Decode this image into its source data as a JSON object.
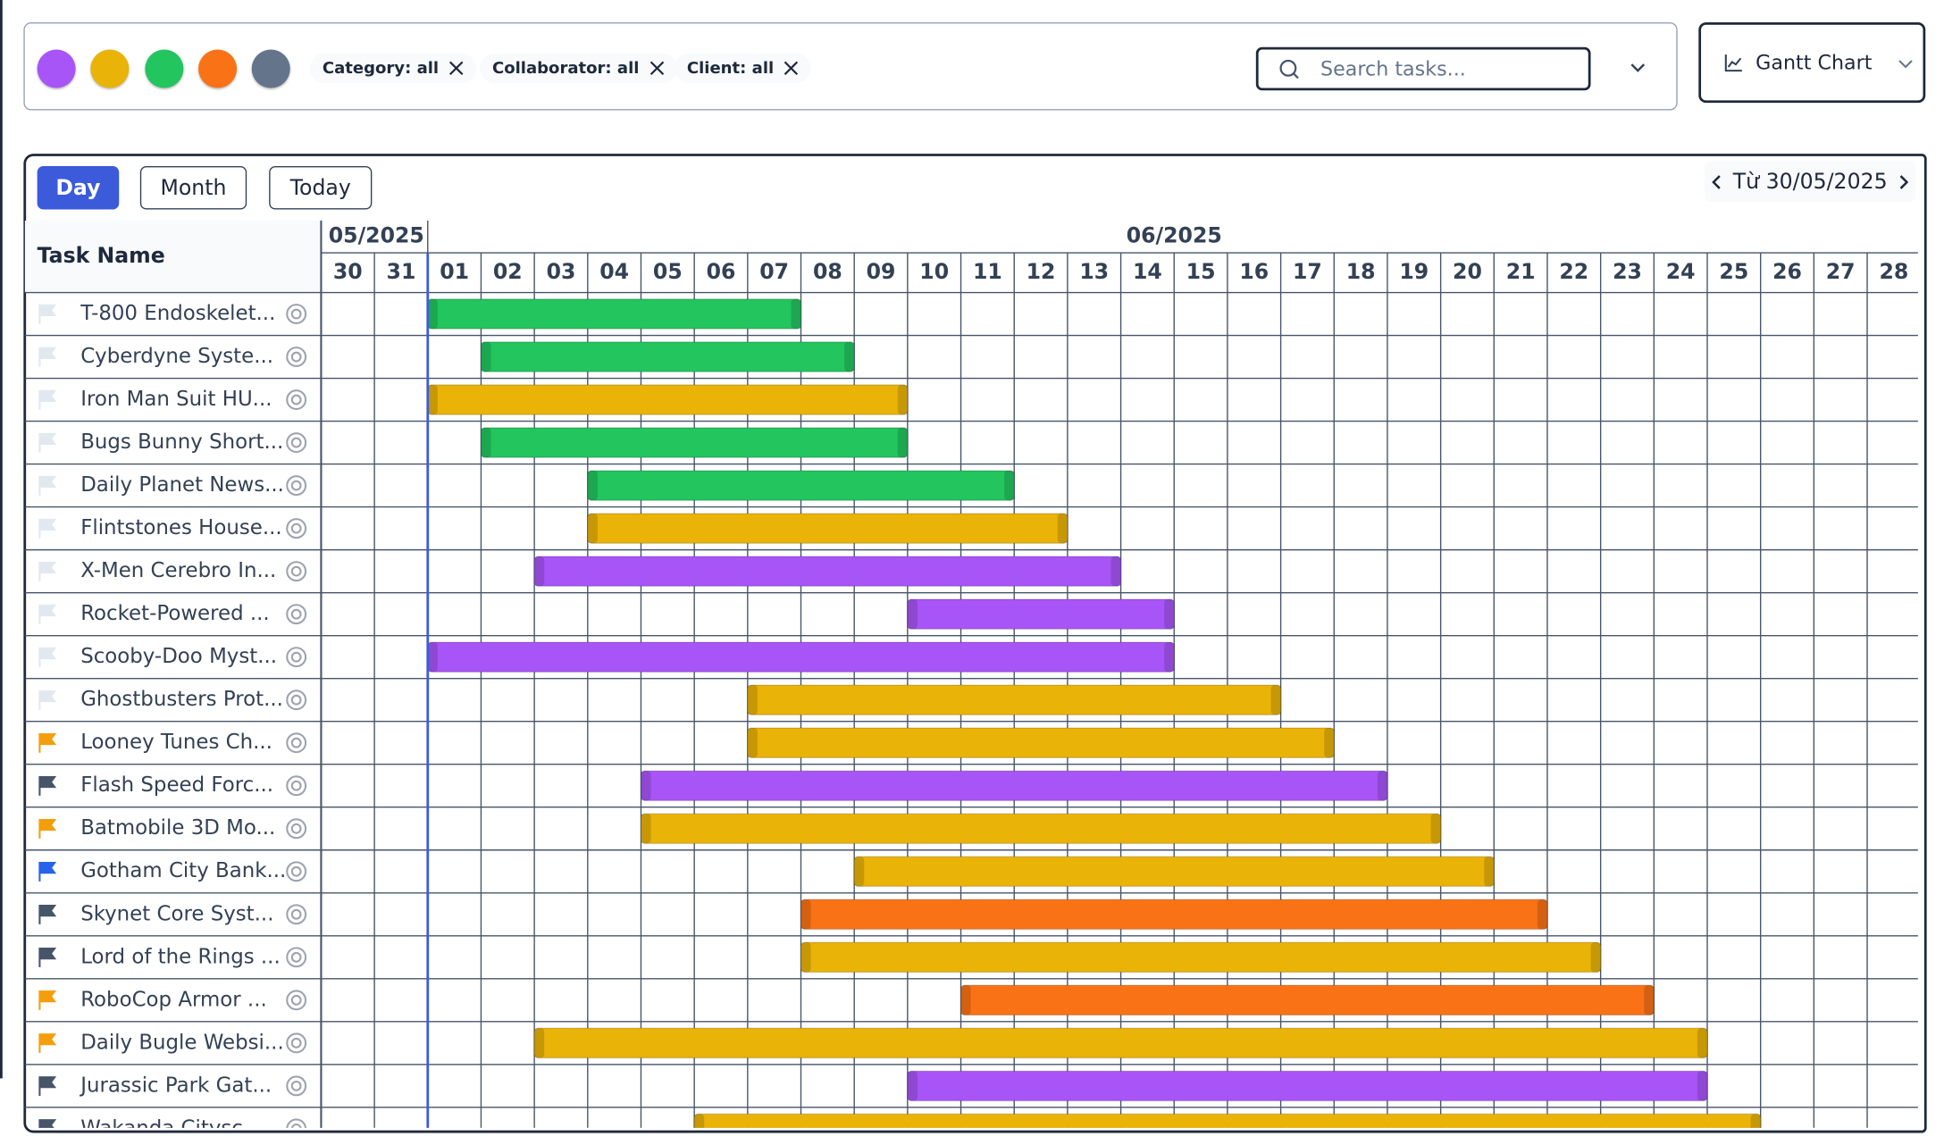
{
  "filters": {
    "colors": [
      "#a855f7",
      "#eab308",
      "#22c55e",
      "#f97316",
      "#64748b"
    ],
    "chips": [
      "Category: all",
      "Collaborator: all",
      "Client: all"
    ],
    "search_placeholder": "Search tasks...",
    "view": "Gantt Chart"
  },
  "toolbar": {
    "buttons": [
      "Day",
      "Month",
      "Today"
    ],
    "active": "Day",
    "range_label": "Từ 30/05/2025"
  },
  "gantt": {
    "column_title": "Task Name",
    "today": "01/06/2025",
    "months": [
      {
        "label": "05/2025",
        "days": [
          "30",
          "31"
        ]
      },
      {
        "label": "06/2025",
        "days": [
          "01",
          "02",
          "03",
          "04",
          "05",
          "06",
          "07",
          "08",
          "09",
          "10",
          "11",
          "12",
          "13",
          "14",
          "15",
          "16",
          "17",
          "18",
          "19",
          "20",
          "21",
          "22",
          "23",
          "24",
          "25",
          "26",
          "27",
          "28"
        ]
      }
    ],
    "tasks": [
      {
        "name": "T-800 Endoskelet...",
        "flag": "#e2e8f0",
        "color": "#22c55e",
        "start": "01/06/2025",
        "end": "07/06/2025"
      },
      {
        "name": "Cyberdyne Syste...",
        "flag": "#e2e8f0",
        "color": "#22c55e",
        "start": "02/06/2025",
        "end": "08/06/2025"
      },
      {
        "name": "Iron Man Suit HU...",
        "flag": "#e2e8f0",
        "color": "#eab308",
        "start": "01/06/2025",
        "end": "09/06/2025"
      },
      {
        "name": "Bugs Bunny Short...",
        "flag": "#e2e8f0",
        "color": "#22c55e",
        "start": "02/06/2025",
        "end": "09/06/2025"
      },
      {
        "name": "Daily Planet News...",
        "flag": "#e2e8f0",
        "color": "#22c55e",
        "start": "04/06/2025",
        "end": "11/06/2025"
      },
      {
        "name": "Flintstones House...",
        "flag": "#e2e8f0",
        "color": "#eab308",
        "start": "04/06/2025",
        "end": "12/06/2025"
      },
      {
        "name": "X-Men Cerebro In...",
        "flag": "#e2e8f0",
        "color": "#a855f7",
        "start": "03/06/2025",
        "end": "13/06/2025"
      },
      {
        "name": "Rocket-Powered ...",
        "flag": "#e2e8f0",
        "color": "#a855f7",
        "start": "10/06/2025",
        "end": "14/06/2025"
      },
      {
        "name": "Scooby-Doo Myst...",
        "flag": "#e2e8f0",
        "color": "#a855f7",
        "start": "01/06/2025",
        "end": "14/06/2025"
      },
      {
        "name": "Ghostbusters Prot...",
        "flag": "#e2e8f0",
        "color": "#eab308",
        "start": "07/06/2025",
        "end": "16/06/2025"
      },
      {
        "name": "Looney Tunes Ch...",
        "flag": "#f59e0b",
        "color": "#eab308",
        "start": "07/06/2025",
        "end": "17/06/2025"
      },
      {
        "name": "Flash Speed Forc...",
        "flag": "#475569",
        "color": "#a855f7",
        "start": "05/06/2025",
        "end": "18/06/2025"
      },
      {
        "name": "Batmobile 3D Mo...",
        "flag": "#f59e0b",
        "color": "#eab308",
        "start": "05/06/2025",
        "end": "19/06/2025"
      },
      {
        "name": "Gotham City Bank...",
        "flag": "#2563eb",
        "color": "#eab308",
        "start": "09/06/2025",
        "end": "20/06/2025"
      },
      {
        "name": "Skynet Core Syst...",
        "flag": "#475569",
        "color": "#f97316",
        "start": "08/06/2025",
        "end": "21/06/2025"
      },
      {
        "name": "Lord of the Rings ...",
        "flag": "#475569",
        "color": "#eab308",
        "start": "08/06/2025",
        "end": "22/06/2025"
      },
      {
        "name": "RoboCop Armor ...",
        "flag": "#f59e0b",
        "color": "#f97316",
        "start": "11/06/2025",
        "end": "23/06/2025"
      },
      {
        "name": "Daily Bugle Websi...",
        "flag": "#f59e0b",
        "color": "#eab308",
        "start": "03/06/2025",
        "end": "24/06/2025"
      },
      {
        "name": "Jurassic Park Gat...",
        "flag": "#475569",
        "color": "#a855f7",
        "start": "10/06/2025",
        "end": "24/06/2025"
      },
      {
        "name": "Wakanda Citysc...",
        "flag": "#475569",
        "color": "#eab308",
        "start": "06/06/2025",
        "end": "25/06/2025"
      }
    ]
  }
}
